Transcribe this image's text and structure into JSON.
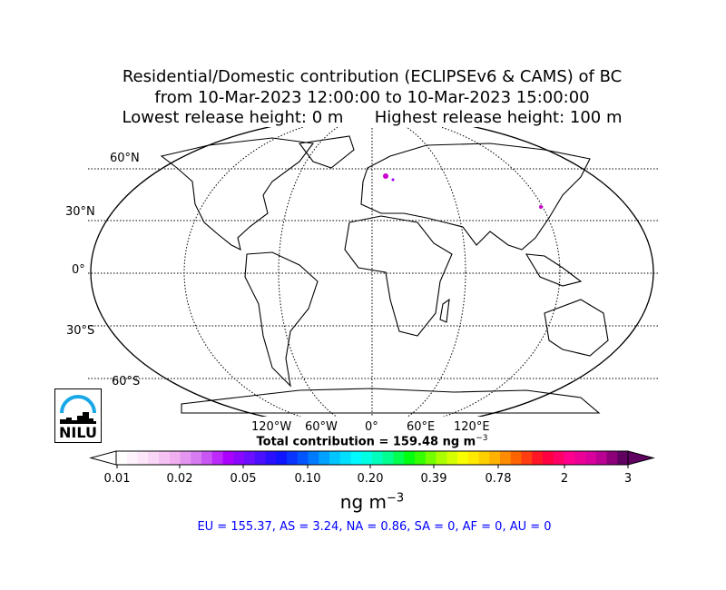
{
  "title": {
    "line1": "Residential/Domestic contribution (ECLIPSEv6 & CAMS) of BC",
    "line2": "from 10-Mar-2023 12:00:00 to 10-Mar-2023 15:00:00",
    "line3": "Lowest release height: 0 m      Highest release height: 100 m"
  },
  "map": {
    "projection": "Robinson",
    "lat_labels": [
      "60°N",
      "30°N",
      "0°",
      "30°S",
      "60°S"
    ],
    "lon_labels": [
      "120°W",
      "60°W",
      "0°",
      "60°E",
      "120°E"
    ],
    "hotspot_color": "#cc00cc"
  },
  "logo": {
    "text": "NILU",
    "arc_color": "#1aa7e8"
  },
  "colorbar": {
    "total_label": "Total contribution = 159.48 ng m",
    "total_sup": "−3",
    "ticks": [
      "0.01",
      "0.02",
      "0.05",
      "0.10",
      "0.20",
      "0.39",
      "0.78",
      "2",
      "3"
    ],
    "color_stops": [
      "#ffffff",
      "#fce0f8",
      "#f2b0f0",
      "#d070f0",
      "#b000ff",
      "#6010ff",
      "#1010ff",
      "#0060ff",
      "#00c0ff",
      "#00ffff",
      "#00ffa0",
      "#00ff00",
      "#a0ff00",
      "#ffff00",
      "#ffc000",
      "#ff6000",
      "#ff0030",
      "#ff0090",
      "#d000a0",
      "#600060"
    ],
    "unit": "ng m",
    "unit_sup": "−3"
  },
  "regions": "EU = 155.37,  AS = 3.24,  NA = 0.86,  SA = 0,  AF = 0,  AU = 0"
}
